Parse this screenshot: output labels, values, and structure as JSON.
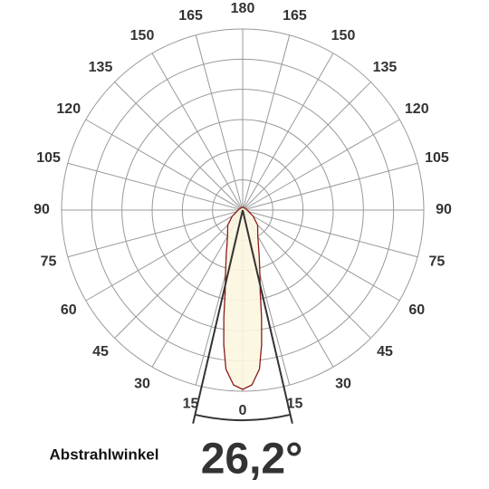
{
  "chart_data": {
    "type": "polar",
    "theta_ticks": [
      {
        "value": -165,
        "label": "165"
      },
      {
        "value": -150,
        "label": "150"
      },
      {
        "value": -135,
        "label": "135"
      },
      {
        "value": -120,
        "label": "120"
      },
      {
        "value": -105,
        "label": "105"
      },
      {
        "value": -90,
        "label": "90"
      },
      {
        "value": -75,
        "label": "75"
      },
      {
        "value": -60,
        "label": "60"
      },
      {
        "value": -45,
        "label": "45"
      },
      {
        "value": -30,
        "label": "30"
      },
      {
        "value": -15,
        "label": "15"
      },
      0,
      15,
      30,
      45,
      60,
      75,
      90,
      105,
      120,
      135,
      150,
      165,
      180
    ],
    "rlim": [
      0,
      6
    ],
    "rticks": [
      1,
      2,
      3,
      4,
      5,
      6
    ],
    "series": [
      {
        "theta": [
          -180,
          -120,
          -90,
          -60,
          -45,
          -30,
          -20,
          -15,
          -12,
          -10,
          -8,
          -6,
          -3,
          0,
          3,
          6,
          8,
          10,
          12,
          15,
          20,
          30,
          45,
          60,
          90,
          120,
          180
        ],
        "values": [
          0.1,
          0.1,
          0.15,
          0.4,
          0.7,
          1.0,
          1.6,
          2.2,
          2.8,
          3.6,
          4.5,
          5.3,
          5.8,
          5.94,
          5.8,
          5.3,
          4.5,
          3.6,
          2.8,
          2.2,
          1.6,
          1.0,
          0.7,
          0.4,
          0.15,
          0.1,
          0.1
        ],
        "color": "#8b1a1a",
        "fill": "#fcf6e0"
      }
    ],
    "beam_angle": {
      "label": "Abstrahlwinkel",
      "value": 26.2,
      "value_label": "26,2°"
    }
  }
}
